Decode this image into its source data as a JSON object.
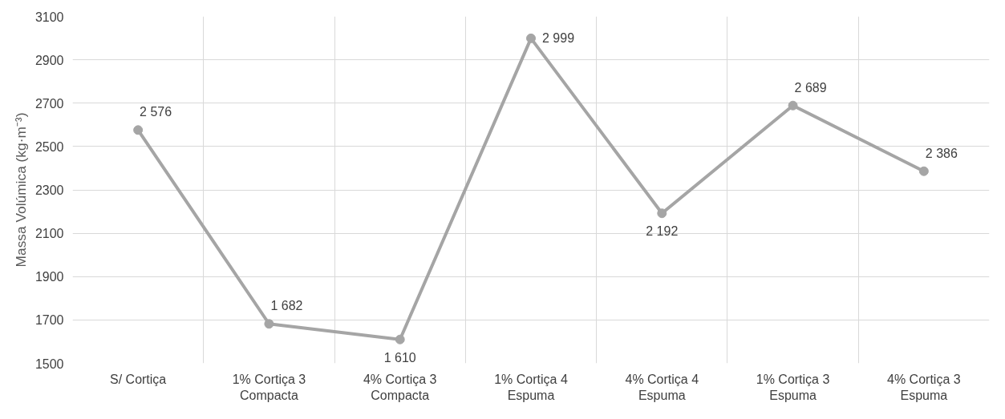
{
  "chart_data": {
    "type": "line",
    "ylabel": "Massa Volúmica (kg·m⁻³)",
    "categories": [
      "S/ Cortiça",
      "1% Cortiça 3\nCompacta",
      "4% Cortiça 3\nCompacta",
      "1% Cortiça 4\nEspuma",
      "4% Cortiça 4\nEspuma",
      "1% Cortiça 3\nEspuma",
      "4% Cortiça 3\nEspuma"
    ],
    "series": [
      {
        "color": "#a5a5a5",
        "values": [
          2576,
          1682,
          1610,
          2999,
          2192,
          2689,
          2386
        ],
        "value_labels": [
          "2 576",
          "1 682",
          "1 610",
          "2 999",
          "2 192",
          "2 689",
          "2 386"
        ]
      }
    ],
    "ylim": [
      1500,
      3100
    ],
    "yticks": [
      1500,
      1700,
      1900,
      2100,
      2300,
      2500,
      2700,
      2900,
      3100
    ],
    "grid": true,
    "marker": "circle",
    "line_style": "solid"
  }
}
